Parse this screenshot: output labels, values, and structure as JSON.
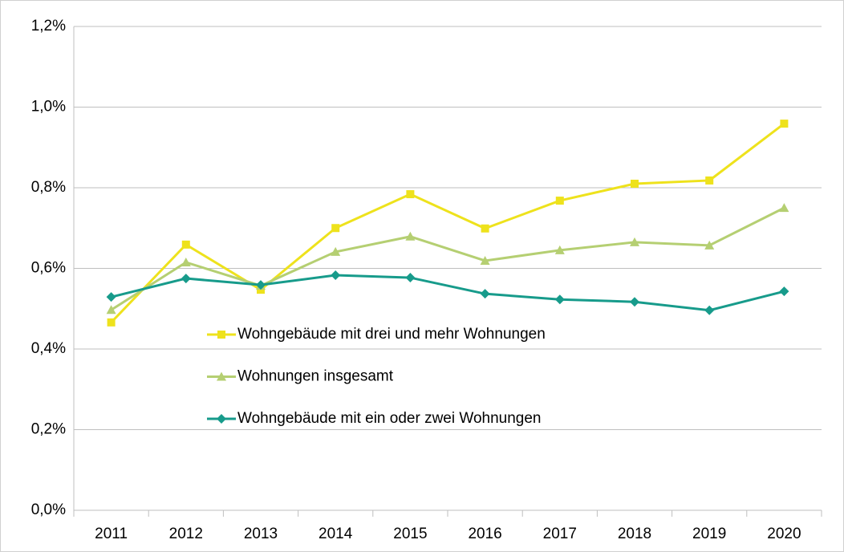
{
  "chart_data": {
    "type": "line",
    "categories": [
      "2011",
      "2012",
      "2013",
      "2014",
      "2015",
      "2016",
      "2017",
      "2018",
      "2019",
      "2020"
    ],
    "series": [
      {
        "name": "Wohngebäude mit drei und mehr Wohnungen",
        "color": "#eee21c",
        "marker": "square",
        "values": [
          0.466,
          0.659,
          0.547,
          0.7,
          0.784,
          0.699,
          0.768,
          0.81,
          0.818,
          0.959
        ]
      },
      {
        "name": "Wohnungen insgesamt",
        "color": "#b5cf72",
        "marker": "triangle",
        "values": [
          0.497,
          0.615,
          0.557,
          0.641,
          0.679,
          0.619,
          0.645,
          0.665,
          0.657,
          0.75
        ]
      },
      {
        "name": "Wohngebäude mit ein oder zwei Wohnungen",
        "color": "#179b8b",
        "marker": "diamond",
        "values": [
          0.529,
          0.575,
          0.559,
          0.583,
          0.577,
          0.537,
          0.523,
          0.517,
          0.496,
          0.543
        ]
      }
    ],
    "ylim": [
      0,
      1.2
    ],
    "yticks": [
      {
        "value": 0,
        "label": "0,0%"
      },
      {
        "value": 0.2,
        "label": "0,2%"
      },
      {
        "value": 0.4,
        "label": "0,4%"
      },
      {
        "value": 0.6,
        "label": "0,6%"
      },
      {
        "value": 0.8,
        "label": "0,8%"
      },
      {
        "value": 1.0,
        "label": "1,0%"
      },
      {
        "value": 1.2,
        "label": "1,2%"
      }
    ],
    "grid": true,
    "legend": "inside-left"
  }
}
